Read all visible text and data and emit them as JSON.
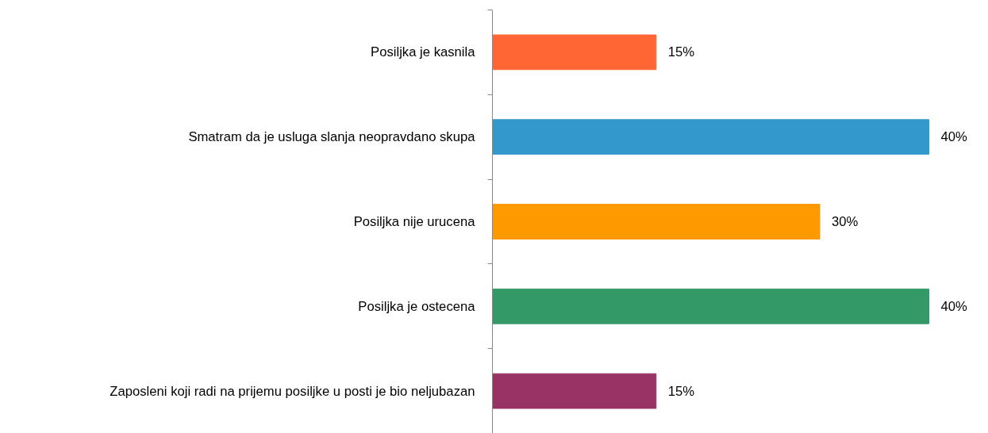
{
  "chart_data": {
    "type": "bar",
    "orientation": "horizontal",
    "categories": [
      "Posiljka je kasnila",
      "Smatram da je usluga slanja neopravdano skupa",
      "Posiljka nije urucena",
      "Posiljka je ostecena",
      "Zaposleni koji radi na prijemu posiljke u posti je bio neljubazan"
    ],
    "values": [
      15,
      40,
      30,
      40,
      15
    ],
    "value_labels": [
      "15%",
      "40%",
      "30%",
      "40%",
      "15%"
    ],
    "colors": [
      "#ff6633",
      "#3399cc",
      "#ff9900",
      "#339966",
      "#993366"
    ],
    "grid": false
  }
}
